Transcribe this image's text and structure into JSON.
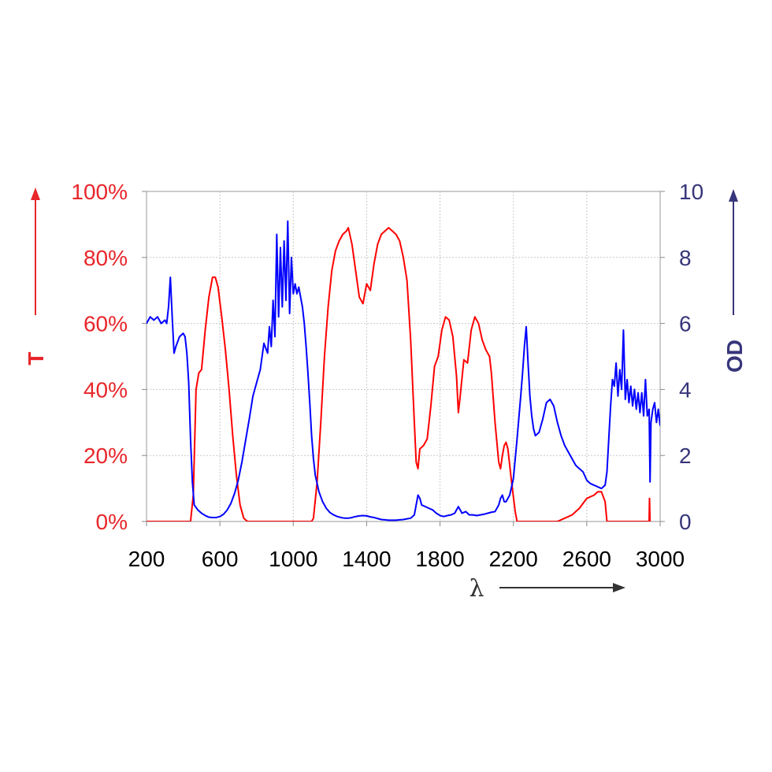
{
  "chart_data": {
    "type": "line",
    "x_axis": {
      "label": "λ",
      "range": [
        200,
        3000
      ],
      "ticks": [
        200,
        600,
        1000,
        1400,
        1800,
        2200,
        2600,
        3000
      ],
      "tick_labels": [
        "200",
        "600",
        "1000",
        "1400",
        "1800",
        "2200",
        "2600",
        "3000"
      ]
    },
    "y_left": {
      "label": "T",
      "range": [
        0,
        100
      ],
      "ticks": [
        0,
        20,
        40,
        60,
        80,
        100
      ],
      "tick_labels": [
        "0%",
        "20%",
        "40%",
        "60%",
        "80%",
        "100%"
      ],
      "color": "#e8262b"
    },
    "y_right": {
      "label": "OD",
      "range": [
        0,
        10
      ],
      "ticks": [
        0,
        2,
        4,
        6,
        8,
        10
      ],
      "tick_labels": [
        "0",
        "2",
        "4",
        "6",
        "8",
        "10"
      ],
      "color": "#37357a"
    },
    "grid": true,
    "legend": "none",
    "series": [
      {
        "axis": "left",
        "color": "#ff0000",
        "points": [
          [
            200,
            0
          ],
          [
            440,
            0
          ],
          [
            455,
            8
          ],
          [
            470,
            40
          ],
          [
            485,
            45
          ],
          [
            500,
            46
          ],
          [
            520,
            58
          ],
          [
            540,
            68
          ],
          [
            560,
            74
          ],
          [
            575,
            74
          ],
          [
            590,
            71
          ],
          [
            610,
            62
          ],
          [
            630,
            52
          ],
          [
            650,
            40
          ],
          [
            670,
            26
          ],
          [
            690,
            14
          ],
          [
            710,
            5
          ],
          [
            730,
            1
          ],
          [
            750,
            0
          ],
          [
            1100,
            0
          ],
          [
            1110,
            1
          ],
          [
            1130,
            12
          ],
          [
            1150,
            30
          ],
          [
            1170,
            50
          ],
          [
            1190,
            65
          ],
          [
            1210,
            76
          ],
          [
            1230,
            82
          ],
          [
            1250,
            85
          ],
          [
            1270,
            87
          ],
          [
            1290,
            88
          ],
          [
            1300,
            89
          ],
          [
            1320,
            84
          ],
          [
            1340,
            76
          ],
          [
            1360,
            68
          ],
          [
            1380,
            66
          ],
          [
            1400,
            72
          ],
          [
            1420,
            70
          ],
          [
            1440,
            78
          ],
          [
            1460,
            84
          ],
          [
            1480,
            87
          ],
          [
            1500,
            88
          ],
          [
            1520,
            89
          ],
          [
            1540,
            88
          ],
          [
            1560,
            87
          ],
          [
            1580,
            85
          ],
          [
            1600,
            80
          ],
          [
            1620,
            73
          ],
          [
            1640,
            55
          ],
          [
            1660,
            30
          ],
          [
            1670,
            18
          ],
          [
            1680,
            16
          ],
          [
            1690,
            22
          ],
          [
            1710,
            23
          ],
          [
            1730,
            25
          ],
          [
            1750,
            35
          ],
          [
            1770,
            47
          ],
          [
            1790,
            50
          ],
          [
            1810,
            58
          ],
          [
            1830,
            62
          ],
          [
            1850,
            61
          ],
          [
            1870,
            56
          ],
          [
            1890,
            44
          ],
          [
            1900,
            33
          ],
          [
            1910,
            38
          ],
          [
            1930,
            49
          ],
          [
            1950,
            48
          ],
          [
            1970,
            58
          ],
          [
            1990,
            62
          ],
          [
            2010,
            60
          ],
          [
            2030,
            55
          ],
          [
            2050,
            52
          ],
          [
            2070,
            50
          ],
          [
            2080,
            45
          ],
          [
            2100,
            30
          ],
          [
            2120,
            18
          ],
          [
            2130,
            16
          ],
          [
            2140,
            20
          ],
          [
            2150,
            23
          ],
          [
            2160,
            24
          ],
          [
            2170,
            22
          ],
          [
            2190,
            12
          ],
          [
            2210,
            3
          ],
          [
            2220,
            0
          ],
          [
            2440,
            0
          ],
          [
            2480,
            1
          ],
          [
            2520,
            2
          ],
          [
            2560,
            4
          ],
          [
            2600,
            7
          ],
          [
            2640,
            8
          ],
          [
            2660,
            9
          ],
          [
            2680,
            9
          ],
          [
            2700,
            6
          ],
          [
            2710,
            0
          ],
          [
            2940,
            0
          ],
          [
            2942,
            7
          ],
          [
            2945,
            0
          ]
        ]
      },
      {
        "axis": "right",
        "color": "#0000ff",
        "points": [
          [
            200,
            6.0
          ],
          [
            220,
            6.2
          ],
          [
            240,
            6.1
          ],
          [
            260,
            6.2
          ],
          [
            280,
            6.0
          ],
          [
            300,
            6.1
          ],
          [
            310,
            6.0
          ],
          [
            320,
            6.5
          ],
          [
            330,
            7.4
          ],
          [
            340,
            6.2
          ],
          [
            350,
            5.1
          ],
          [
            360,
            5.3
          ],
          [
            380,
            5.6
          ],
          [
            400,
            5.7
          ],
          [
            410,
            5.6
          ],
          [
            420,
            5.1
          ],
          [
            430,
            4.2
          ],
          [
            440,
            2.5
          ],
          [
            450,
            1.2
          ],
          [
            460,
            0.5
          ],
          [
            480,
            0.35
          ],
          [
            500,
            0.25
          ],
          [
            520,
            0.18
          ],
          [
            540,
            0.13
          ],
          [
            560,
            0.12
          ],
          [
            580,
            0.12
          ],
          [
            600,
            0.15
          ],
          [
            620,
            0.22
          ],
          [
            640,
            0.35
          ],
          [
            660,
            0.55
          ],
          [
            680,
            0.85
          ],
          [
            700,
            1.25
          ],
          [
            720,
            1.8
          ],
          [
            740,
            2.45
          ],
          [
            760,
            3.1
          ],
          [
            780,
            3.8
          ],
          [
            800,
            4.2
          ],
          [
            820,
            4.6
          ],
          [
            840,
            5.4
          ],
          [
            860,
            5.1
          ],
          [
            870,
            5.9
          ],
          [
            880,
            5.3
          ],
          [
            890,
            6.7
          ],
          [
            900,
            5.6
          ],
          [
            910,
            8.7
          ],
          [
            920,
            6.2
          ],
          [
            930,
            8.3
          ],
          [
            940,
            6.5
          ],
          [
            950,
            8.5
          ],
          [
            960,
            6.7
          ],
          [
            970,
            9.1
          ],
          [
            980,
            6.3
          ],
          [
            990,
            8.0
          ],
          [
            1000,
            6.9
          ],
          [
            1010,
            7.2
          ],
          [
            1020,
            6.9
          ],
          [
            1030,
            7.1
          ],
          [
            1040,
            6.8
          ],
          [
            1050,
            6.5
          ],
          [
            1060,
            6.0
          ],
          [
            1070,
            5.3
          ],
          [
            1080,
            4.5
          ],
          [
            1090,
            3.6
          ],
          [
            1100,
            2.6
          ],
          [
            1110,
            1.9
          ],
          [
            1120,
            1.4
          ],
          [
            1140,
            0.9
          ],
          [
            1160,
            0.6
          ],
          [
            1180,
            0.4
          ],
          [
            1200,
            0.27
          ],
          [
            1220,
            0.2
          ],
          [
            1240,
            0.15
          ],
          [
            1260,
            0.12
          ],
          [
            1280,
            0.1
          ],
          [
            1300,
            0.1
          ],
          [
            1320,
            0.12
          ],
          [
            1340,
            0.15
          ],
          [
            1360,
            0.17
          ],
          [
            1380,
            0.18
          ],
          [
            1400,
            0.17
          ],
          [
            1420,
            0.14
          ],
          [
            1440,
            0.12
          ],
          [
            1460,
            0.09
          ],
          [
            1480,
            0.06
          ],
          [
            1500,
            0.05
          ],
          [
            1520,
            0.04
          ],
          [
            1540,
            0.04
          ],
          [
            1560,
            0.04
          ],
          [
            1580,
            0.05
          ],
          [
            1600,
            0.06
          ],
          [
            1620,
            0.08
          ],
          [
            1640,
            0.1
          ],
          [
            1660,
            0.2
          ],
          [
            1670,
            0.5
          ],
          [
            1680,
            0.8
          ],
          [
            1690,
            0.7
          ],
          [
            1700,
            0.5
          ],
          [
            1720,
            0.45
          ],
          [
            1740,
            0.4
          ],
          [
            1760,
            0.35
          ],
          [
            1780,
            0.25
          ],
          [
            1800,
            0.18
          ],
          [
            1820,
            0.15
          ],
          [
            1840,
            0.18
          ],
          [
            1860,
            0.2
          ],
          [
            1880,
            0.25
          ],
          [
            1900,
            0.45
          ],
          [
            1910,
            0.35
          ],
          [
            1920,
            0.25
          ],
          [
            1940,
            0.3
          ],
          [
            1960,
            0.2
          ],
          [
            1980,
            0.2
          ],
          [
            2000,
            0.18
          ],
          [
            2020,
            0.2
          ],
          [
            2040,
            0.22
          ],
          [
            2060,
            0.25
          ],
          [
            2080,
            0.28
          ],
          [
            2100,
            0.3
          ],
          [
            2120,
            0.5
          ],
          [
            2130,
            0.7
          ],
          [
            2140,
            0.8
          ],
          [
            2150,
            0.6
          ],
          [
            2160,
            0.6
          ],
          [
            2170,
            0.7
          ],
          [
            2180,
            0.8
          ],
          [
            2200,
            1.3
          ],
          [
            2220,
            2.5
          ],
          [
            2240,
            3.8
          ],
          [
            2250,
            4.5
          ],
          [
            2260,
            5.3
          ],
          [
            2270,
            5.9
          ],
          [
            2280,
            4.8
          ],
          [
            2290,
            3.8
          ],
          [
            2300,
            3.2
          ],
          [
            2310,
            2.8
          ],
          [
            2320,
            2.6
          ],
          [
            2340,
            2.7
          ],
          [
            2360,
            3.1
          ],
          [
            2380,
            3.6
          ],
          [
            2400,
            3.7
          ],
          [
            2420,
            3.5
          ],
          [
            2440,
            3.0
          ],
          [
            2460,
            2.6
          ],
          [
            2480,
            2.3
          ],
          [
            2500,
            2.1
          ],
          [
            2520,
            1.9
          ],
          [
            2540,
            1.7
          ],
          [
            2560,
            1.6
          ],
          [
            2580,
            1.5
          ],
          [
            2600,
            1.25
          ],
          [
            2620,
            1.15
          ],
          [
            2640,
            1.1
          ],
          [
            2660,
            1.05
          ],
          [
            2680,
            1.0
          ],
          [
            2700,
            1.1
          ],
          [
            2710,
            1.5
          ],
          [
            2720,
            2.5
          ],
          [
            2730,
            3.5
          ],
          [
            2740,
            4.3
          ],
          [
            2750,
            4.1
          ],
          [
            2760,
            4.8
          ],
          [
            2770,
            3.8
          ],
          [
            2780,
            4.6
          ],
          [
            2790,
            4.0
          ],
          [
            2800,
            5.8
          ],
          [
            2810,
            3.7
          ],
          [
            2820,
            4.3
          ],
          [
            2830,
            3.6
          ],
          [
            2840,
            4.1
          ],
          [
            2850,
            3.5
          ],
          [
            2860,
            4.0
          ],
          [
            2870,
            3.4
          ],
          [
            2880,
            3.9
          ],
          [
            2890,
            3.3
          ],
          [
            2900,
            3.9
          ],
          [
            2910,
            3.2
          ],
          [
            2920,
            4.3
          ],
          [
            2930,
            3.2
          ],
          [
            2940,
            3.4
          ],
          [
            2945,
            1.2
          ],
          [
            2950,
            3.0
          ],
          [
            2960,
            3.4
          ],
          [
            2970,
            3.6
          ],
          [
            2980,
            3.0
          ],
          [
            2990,
            3.4
          ],
          [
            3000,
            2.9
          ]
        ]
      }
    ]
  }
}
